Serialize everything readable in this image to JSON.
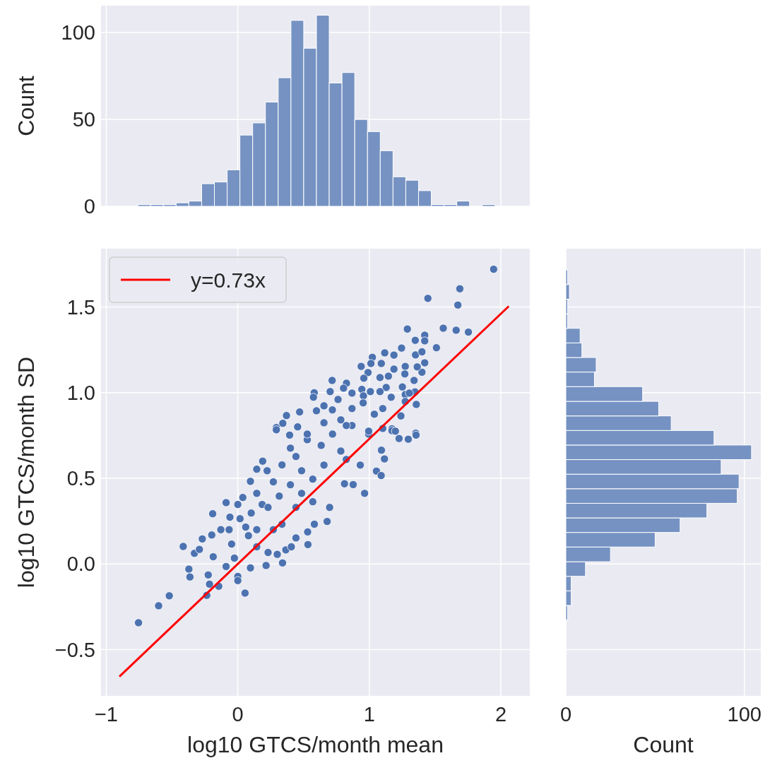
{
  "chart_data": [
    {
      "type": "histogram",
      "ylabel": "Count",
      "color": "#7592c2",
      "grid": true,
      "tick_labels": "y",
      "bins": [
        -0.76,
        -0.663,
        -0.566,
        -0.469,
        -0.372,
        -0.275,
        -0.178,
        -0.081,
        0.016,
        0.113,
        0.21,
        0.307,
        0.404,
        0.501,
        0.598,
        0.695,
        0.792,
        0.889,
        0.986,
        1.083,
        1.18,
        1.277,
        1.374,
        1.471,
        1.568,
        1.665,
        1.762,
        1.859,
        1.956
      ],
      "values": [
        1,
        1,
        1,
        2,
        3,
        13,
        14,
        21,
        41,
        48,
        60,
        74,
        107,
        91,
        110,
        71,
        77,
        50,
        43,
        32,
        17,
        15,
        9,
        1,
        1,
        3,
        0,
        1
      ],
      "xlim": [
        -1.04,
        2.22
      ],
      "xticks": [
        -1,
        0,
        1,
        2
      ],
      "ylim": [
        0,
        115.5
      ],
      "yticks": [
        0,
        50,
        100
      ]
    },
    {
      "type": "scatter",
      "xlabel": "log10 GTCS/month mean",
      "ylabel": "log10 GTCS/month SD",
      "grid": true,
      "legend": "top left",
      "xlim": [
        -1.04,
        2.22
      ],
      "xticks": [
        {
          "value": -1,
          "label": "−1"
        },
        0,
        1,
        2
      ],
      "ylim": [
        -0.77,
        1.84
      ],
      "yticks": [
        {
          "value": -0.5,
          "label": "−0.5"
        },
        {
          "value": 0,
          "label": "0.0"
        },
        {
          "value": 0.5,
          "label": "0.5"
        },
        {
          "value": 1,
          "label": "1.0"
        },
        {
          "value": 1.5,
          "label": "1.5"
        }
      ],
      "series": [
        {
          "marker": "circle",
          "color": "#4c72b0",
          "x": [
            -0.755,
            -0.602,
            -0.521,
            -0.415,
            -0.372,
            -0.364,
            -0.33,
            -0.292,
            -0.27,
            -0.236,
            -0.225,
            -0.215,
            -0.191,
            -0.198,
            -0.187,
            -0.145,
            -0.129,
            -0.089,
            -0.089,
            -0.066,
            -0.06,
            0,
            0,
            0,
            0.055,
            0.038,
            0.096,
            0.096,
            0.144,
            0.189,
            0.215,
            0.223,
            0.293,
            0.34,
            0.3,
            0.365,
            0.407,
            0.442,
            0.531,
            0.582,
            0.533,
            0.679,
            0.698,
            0.811,
            0.877,
            0.964,
            1.054,
            1.09,
            1.115,
            1.092,
            1.226,
            1.296,
            1.353,
            1.172,
            0.017,
            0.102,
            0.144,
            0.185,
            0.23,
            0.27,
            0.315,
            0.336,
            0.4,
            0.442,
            0.485,
            0.528,
            0.57,
            0.634,
            0.655,
            0.72,
            0.783,
            0.825,
            0.868,
            0.931,
            0.995,
            0.144,
            0.23,
            0.081,
            -0.047,
            -0.026,
            0.06,
            0.144,
            0.27,
            0.336,
            0.442,
            0.57,
            0.485,
            0.4,
            1.945,
            1.688,
            1.673,
            1.445,
            1.562,
            1.66,
            1.753,
            1.289,
            1.421,
            1.421,
            1.51,
            1.349,
            1.245,
            1.351,
            1.4,
            1.421,
            1.4,
            1.364,
            1.273,
            1.187,
            1.117,
            1.023,
            1.091,
            1.012,
            0.938,
            1.187,
            1.145,
            0.99,
            0.958,
            1.081,
            1.27,
            1.34,
            1.251,
            1.273,
            1.273,
            1.357,
            1.347,
            1.304,
            0.717,
            0.826,
            0.943,
            1.008,
            1.128,
            0.581,
            0.575,
            0.702,
            0.762,
            0.804,
            0.868,
            0.955,
            1.081,
            1.166,
            0.47,
            0.37,
            0.342,
            0.293,
            0.394,
            0.455,
            0.598,
            0.655,
            0.719,
            0.783,
            0.868,
            0.953,
            1.038,
            1.102,
            1.172,
            1.24,
            1.355,
            0.528,
            0.655,
            0.825,
            0.995,
            1.102,
            1.198
          ],
          "values": [
            -0.343,
            -0.244,
            -0.186,
            0.102,
            -0.03,
            -0.076,
            0.062,
            0.085,
            0.146,
            -0.183,
            -0.064,
            -0.118,
            0.293,
            0.169,
            0.042,
            -0.13,
            0.2,
            0.358,
            -0.015,
            0.2,
            0.273,
            0.347,
            -0.073,
            -0.097,
            -0.17,
            0.388,
            -0.023,
            0.482,
            0.553,
            0.6,
            -0.009,
            0.544,
            0.796,
            0.006,
            0.056,
            0.082,
            0.1,
            0.152,
            0.187,
            0.232,
            0.113,
            0.248,
            0.33,
            0.468,
            0.463,
            0.412,
            0.542,
            0.516,
            0.613,
            0.664,
            0.732,
            0.728,
            0.763,
            0.789,
            0.264,
            0.297,
            0.412,
            0.347,
            0.33,
            0.479,
            0.396,
            0.578,
            0.462,
            0.627,
            0.412,
            0.725,
            0.495,
            0.692,
            0.577,
            0.758,
            0.659,
            0.61,
            0.808,
            0.577,
            0.758,
            0.1,
            0.067,
            0.165,
            0.116,
            0.034,
            0.215,
            0.2,
            0.2,
            0.232,
            0.33,
            0.363,
            0.544,
            0.676,
            1.72,
            1.606,
            1.511,
            1.55,
            1.376,
            1.364,
            1.353,
            1.371,
            1.335,
            1.302,
            1.262,
            1.305,
            1.26,
            1.22,
            1.238,
            1.174,
            1.119,
            1.15,
            1.153,
            1.219,
            1.232,
            1.206,
            1.17,
            1.17,
            1.153,
            1.137,
            1.096,
            1.117,
            1.084,
            1.088,
            1.109,
            1.071,
            1.033,
            0.989,
            0.948,
            0.931,
            1.004,
            0.997,
            1.071,
            1.055,
            1.019,
            1.006,
            1.03,
            0.999,
            0.973,
            1.006,
            0.96,
            1.026,
            0.997,
            0.981,
            1.006,
            0.973,
            0.887,
            0.866,
            0.821,
            0.783,
            0.752,
            0.8,
            0.894,
            0.923,
            0.899,
            0.841,
            0.907,
            0.94,
            0.874,
            0.907,
            0.778,
            0.864,
            0.752,
            0.758,
            0.824,
            0.808,
            0.775,
            0.791,
            0.775
          ]
        },
        {
          "type": "line",
          "name": "y=0.73x",
          "color": "#ff0000",
          "x": [
            -0.9,
            2.06
          ],
          "values": [
            -0.657,
            1.504
          ]
        }
      ]
    },
    {
      "type": "histogram",
      "orientation": "horizontal",
      "xlabel": "Count",
      "color": "#7592c2",
      "grid": true,
      "tick_labels": "x",
      "bins": [
        -0.327,
        -0.242,
        -0.157,
        -0.072,
        0.013,
        0.099,
        0.184,
        0.269,
        0.354,
        0.439,
        0.524,
        0.609,
        0.694,
        0.779,
        0.864,
        0.949,
        1.035,
        1.12,
        1.205,
        1.29,
        1.375,
        1.46,
        1.545,
        1.631,
        1.716
      ],
      "values": [
        1,
        3,
        3,
        11,
        25,
        50,
        64,
        79,
        96,
        97,
        87,
        104,
        83,
        59,
        52,
        43,
        16,
        17,
        9,
        8,
        1,
        1,
        2,
        1
      ],
      "xlim": [
        0,
        109.2
      ],
      "xticks": [
        0,
        100
      ],
      "ylim": [
        -0.77,
        1.84
      ],
      "yticks": [
        -0.5,
        0,
        0.5,
        1,
        1.5
      ]
    }
  ]
}
